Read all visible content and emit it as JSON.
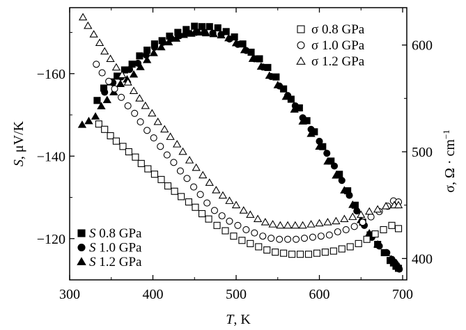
{
  "chart_data": {
    "type": "scatter",
    "x_axis": {
      "label_italic": "T",
      "label_rest": ", K",
      "range": [
        300,
        705
      ],
      "ticks": [
        300,
        400,
        500,
        600,
        700
      ]
    },
    "y_left_axis": {
      "label_italic": "S",
      "label_rest": ", μV/K",
      "range": [
        -110,
        -176
      ],
      "ticks": [
        -120,
        -140,
        -160
      ],
      "tick_labels": [
        "−120",
        "−140",
        "−160"
      ]
    },
    "y_right_axis": {
      "label": "σ, Ω · cm",
      "label_sup": "−1",
      "range": [
        380,
        635
      ],
      "ticks": [
        400,
        500,
        600
      ]
    },
    "legend_right": {
      "placement": "top-right",
      "entries": [
        "σ 0.8 GPa",
        "σ 1.0 GPa",
        "σ 1.2 GPa"
      ]
    },
    "legend_left": {
      "placement": "bottom-left",
      "entries": [
        {
          "symbol": "S",
          "rest": " 0.8 GPa"
        },
        {
          "symbol": "S",
          "rest": " 1.0 GPa"
        },
        {
          "symbol": "S",
          "rest": " 1.2 GPa"
        }
      ]
    },
    "series": [
      {
        "quantity": "S",
        "pressure": "0.8 GPa",
        "marker": "square",
        "filled": true,
        "axis": "left",
        "x": [
          333,
          341,
          349,
          357,
          366,
          375,
          384,
          393,
          402,
          411,
          420,
          430,
          440,
          450,
          459,
          468,
          478,
          488,
          498,
          508,
          518,
          528,
          538,
          548,
          557,
          566,
          576,
          585,
          594,
          604,
          614,
          624,
          634,
          643,
          652,
          661,
          670,
          678,
          685,
          689,
          692,
          695
        ],
        "y": [
          -153.5,
          -156.5,
          -158,
          -159.4,
          -160.9,
          -162.3,
          -164.3,
          -165.7,
          -167.2,
          -168,
          -169.1,
          -170,
          -170.7,
          -171.5,
          -171.4,
          -171.4,
          -171.1,
          -170.2,
          -168.9,
          -167.2,
          -165.2,
          -163.6,
          -161.5,
          -159.2,
          -156.3,
          -153.8,
          -151.7,
          -148.6,
          -145.9,
          -142.3,
          -138.8,
          -135.6,
          -131.6,
          -128.1,
          -124,
          -120.9,
          -118.6,
          -116.6,
          -114.7,
          -114.1,
          -113.3,
          -112.8
        ]
      },
      {
        "quantity": "S",
        "pressure": "1.0 GPa",
        "marker": "circle",
        "filled": true,
        "axis": "left",
        "x": [
          342,
          352,
          362,
          372,
          382,
          392,
          402,
          412,
          422,
          432,
          442,
          452,
          462,
          472,
          482,
          492,
          502,
          512,
          522,
          532,
          542,
          552,
          562,
          571,
          580,
          590,
          600,
          609,
          618,
          627,
          636,
          645,
          654,
          663,
          672,
          681,
          687,
          690,
          693,
          696
        ],
        "y": [
          -155.5,
          -157.8,
          -159.2,
          -161,
          -162.5,
          -164.5,
          -166.4,
          -167.6,
          -168.5,
          -169.2,
          -169.9,
          -170,
          -170,
          -169.8,
          -169.5,
          -168.4,
          -167.1,
          -165.6,
          -163.6,
          -161.6,
          -159.3,
          -157,
          -154.7,
          -152.2,
          -149.3,
          -146.5,
          -143.6,
          -140.7,
          -137.6,
          -134.1,
          -130.5,
          -126.7,
          -123.2,
          -120.3,
          -118.2,
          -116.6,
          -115,
          -114.3,
          -113.5,
          -112.6
        ]
      },
      {
        "quantity": "S",
        "pressure": "1.2 GPa",
        "marker": "triangle",
        "filled": true,
        "axis": "left",
        "x": [
          315,
          323,
          331,
          338,
          345,
          353,
          361,
          369,
          377,
          385,
          393,
          401,
          410,
          419,
          428,
          437,
          446,
          455,
          464,
          473,
          482,
          491,
          500,
          510,
          520,
          530,
          540,
          550,
          560,
          570,
          580,
          590,
          600,
          610,
          620,
          630,
          640,
          650,
          660,
          670,
          680,
          686,
          690,
          694
        ],
        "y": [
          -147.6,
          -148.5,
          -149.6,
          -152.1,
          -153.6,
          -155.5,
          -157.5,
          -158.6,
          -159.8,
          -161.6,
          -163.3,
          -165,
          -166.4,
          -167.6,
          -168.5,
          -169.4,
          -169.7,
          -170,
          -169.8,
          -169.6,
          -169.3,
          -168.6,
          -167.4,
          -165.7,
          -163.6,
          -161.7,
          -159.5,
          -157.2,
          -154.4,
          -151.3,
          -148.4,
          -145.4,
          -142.3,
          -138.7,
          -135.3,
          -131.7,
          -128.2,
          -124.5,
          -121.3,
          -118.6,
          -116.5,
          -115,
          -114.3,
          -113.6
        ]
      },
      {
        "quantity": "σ",
        "pressure": "0.8 GPa",
        "marker": "square",
        "filled": false,
        "axis": "right",
        "x": [
          335,
          342,
          349,
          356,
          364,
          371,
          379,
          386,
          394,
          402,
          410,
          418,
          426,
          434,
          443,
          451,
          459,
          467,
          477,
          487,
          497,
          507,
          517,
          527,
          537,
          547,
          557,
          567,
          577,
          587,
          597,
          607,
          617,
          627,
          637,
          647,
          657,
          667,
          677,
          687,
          695
        ],
        "y": [
          526,
          521,
          515,
          510,
          505,
          500,
          495,
          489,
          484,
          479,
          474,
          468,
          463,
          458,
          453,
          448,
          442,
          437,
          431,
          426,
          421,
          417,
          414,
          411,
          408,
          406,
          405,
          404,
          404,
          404,
          405,
          406,
          407,
          409,
          411,
          414,
          418,
          423,
          427,
          431,
          428
        ]
      },
      {
        "quantity": "σ",
        "pressure": "1.0 GPa",
        "marker": "circle",
        "filled": false,
        "axis": "right",
        "x": [
          332,
          339,
          347,
          354,
          362,
          370,
          378,
          385,
          393,
          401,
          409,
          417,
          425,
          433,
          441,
          449,
          457,
          465,
          474,
          483,
          492,
          502,
          512,
          522,
          532,
          542,
          552,
          562,
          572,
          582,
          592,
          602,
          612,
          622,
          632,
          642,
          652,
          662,
          672,
          682,
          689,
          695
        ],
        "y": [
          582,
          574,
          566,
          559,
          551,
          543,
          536,
          528,
          520,
          513,
          505,
          497,
          490,
          482,
          475,
          467,
          460,
          452,
          445,
          440,
          435,
          431,
          427,
          424,
          421,
          419,
          418,
          418,
          418,
          419,
          420,
          421,
          422,
          425,
          427,
          430,
          434,
          439,
          444,
          449,
          454,
          453
        ]
      },
      {
        "quantity": "σ",
        "pressure": "1.2 GPa",
        "marker": "triangle",
        "filled": false,
        "axis": "right",
        "x": [
          316,
          322,
          329,
          336,
          342,
          349,
          356,
          363,
          370,
          377,
          384,
          391,
          399,
          406,
          414,
          421,
          429,
          436,
          444,
          452,
          460,
          468,
          476,
          484,
          492,
          500,
          509,
          517,
          526,
          535,
          544,
          553,
          562,
          571,
          580,
          590,
          600,
          610,
          620,
          630,
          640,
          650,
          660,
          670,
          680,
          690,
          695
        ],
        "y": [
          626,
          618,
          610,
          602,
          594,
          587,
          579,
          572,
          565,
          557,
          550,
          543,
          536,
          528,
          521,
          514,
          507,
          500,
          492,
          485,
          478,
          471,
          464,
          459,
          454,
          450,
          445,
          441,
          437,
          434,
          432,
          431,
          431,
          431,
          431,
          432,
          433,
          434,
          435,
          437,
          439,
          441,
          444,
          446,
          449,
          450,
          450
        ]
      }
    ]
  }
}
